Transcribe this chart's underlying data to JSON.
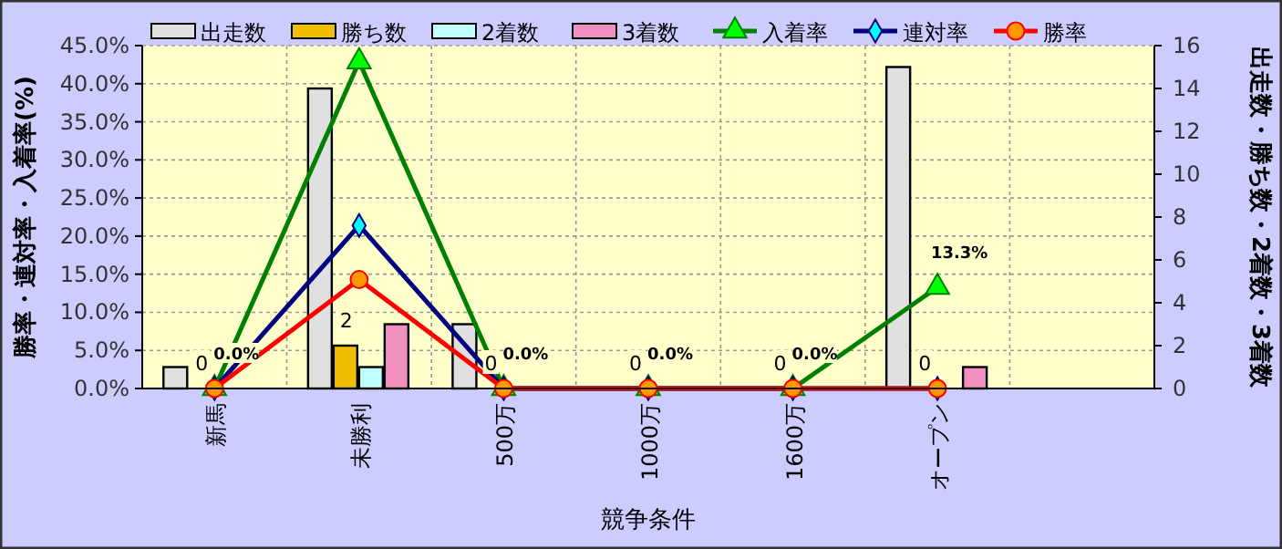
{
  "chart_data": {
    "type": "bar",
    "xlabel": "競争条件",
    "ylabel": "勝率・連対率・入着率(%)",
    "y2label": "出走数・勝ち数・2着数・3着数",
    "categories": [
      "新馬",
      "未勝利",
      "500万",
      "1000万",
      "1600万",
      "オープン",
      null
    ],
    "ylim": [
      0,
      45
    ],
    "yticks": [
      {
        "value": 0,
        "label": "0.0%"
      },
      {
        "value": 5,
        "label": "5.0%"
      },
      {
        "value": 10,
        "label": "10.0%"
      },
      {
        "value": 15,
        "label": "15.0%"
      },
      {
        "value": 20,
        "label": "20.0%"
      },
      {
        "value": 25,
        "label": "25.0%"
      },
      {
        "value": 30,
        "label": "30.0%"
      },
      {
        "value": 35,
        "label": "35.0%"
      },
      {
        "value": 40,
        "label": "40.0%"
      },
      {
        "value": 45,
        "label": "45.0%"
      }
    ],
    "y2lim": [
      0,
      16
    ],
    "y2ticks": [
      0,
      2,
      4,
      6,
      8,
      10,
      12,
      14,
      16
    ],
    "grid": true,
    "legend": "top",
    "series": [
      {
        "name": "出走数",
        "axis": "y2",
        "color": "#e0e0e0",
        "values": [
          1,
          14,
          3,
          0,
          0,
          15,
          null
        ]
      },
      {
        "name": "勝ち数",
        "axis": "y2",
        "color": "#f0c000",
        "values": [
          0,
          2,
          0,
          0,
          0,
          0,
          null
        ],
        "value_labels": [
          "0",
          "2",
          "0",
          "0",
          "0",
          "0",
          null
        ]
      },
      {
        "name": "2着数",
        "axis": "y2",
        "color": "#c0ffff",
        "values": [
          0,
          1,
          0,
          0,
          0,
          0,
          null
        ]
      },
      {
        "name": "3着数",
        "axis": "y2",
        "color": "#f090c0",
        "values": [
          0,
          3,
          0,
          0,
          0,
          1,
          null
        ]
      },
      {
        "name": "入着率",
        "type": "line",
        "marker": "triangle",
        "color": "#008000",
        "values": [
          0,
          42.9,
          0,
          0,
          0,
          13.3,
          null
        ],
        "value_labels": [
          "0.0%",
          null,
          "0.0%",
          "0.0%",
          "0.0%",
          "13.3%",
          null
        ]
      },
      {
        "name": "連対率",
        "type": "line",
        "marker": "diamond",
        "color": "#000080",
        "values": [
          0,
          21.4,
          0,
          0,
          0,
          0,
          null
        ]
      },
      {
        "name": "勝率",
        "type": "line",
        "marker": "circle",
        "color": "#ff0000",
        "values": [
          0,
          14.3,
          0,
          0,
          0,
          0,
          null
        ]
      }
    ]
  }
}
